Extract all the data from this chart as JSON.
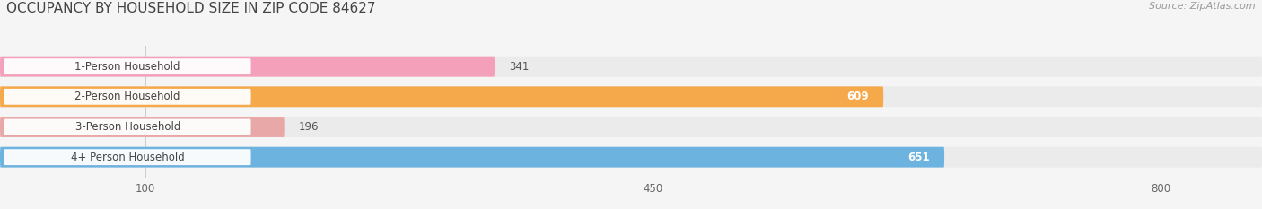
{
  "title": "OCCUPANCY BY HOUSEHOLD SIZE IN ZIP CODE 84627",
  "source": "Source: ZipAtlas.com",
  "categories": [
    "1-Person Household",
    "2-Person Household",
    "3-Person Household",
    "4+ Person Household"
  ],
  "values": [
    341,
    609,
    196,
    651
  ],
  "bar_colors": [
    "#f5a0bb",
    "#f5a94a",
    "#e8a8a8",
    "#6db3e0"
  ],
  "bar_bg_color": "#ebebeb",
  "x_ticks": [
    100,
    450,
    800
  ],
  "xmax": 870,
  "fig_bg_color": "#f5f5f5",
  "title_fontsize": 11,
  "source_fontsize": 8,
  "bar_label_fontsize": 8.5,
  "value_fontsize": 8.5
}
